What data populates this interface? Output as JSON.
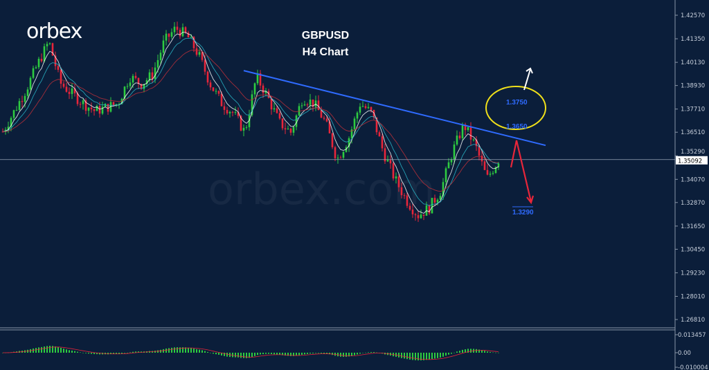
{
  "logo": "orbex",
  "watermark": "orbex.com",
  "title": {
    "symbol": "GBPUSD",
    "timeframe": "H4 Chart"
  },
  "colors": {
    "background": "#0b1e3a",
    "bull": "#2ecc40",
    "bear": "#e8263a",
    "trendline": "#2f6bff",
    "ellipse": "#f0e01a",
    "annotation": "#2f6bff"
  },
  "chart_data": {
    "type": "candlestick",
    "symbol": "GBPUSD",
    "timeframe": "H4",
    "ylim": [
      1.262,
      1.43
    ],
    "y_ticks": [
      "1.42570",
      "1.41350",
      "1.40130",
      "1.38930",
      "1.37710",
      "1.36510",
      "1.35290",
      "1.34070",
      "1.32870",
      "1.31650",
      "1.30450",
      "1.29230",
      "1.28010",
      "1.26810"
    ],
    "current_price": "1.35092",
    "approx_close_path": [
      1.3654,
      1.376,
      1.387,
      1.4,
      1.4121,
      1.3905,
      1.385,
      1.38,
      1.376,
      1.378,
      1.38,
      1.394,
      1.39,
      1.395,
      1.412,
      1.419,
      1.415,
      1.405,
      1.39,
      1.38,
      1.375,
      1.365,
      1.394,
      1.383,
      1.37,
      1.365,
      1.383,
      1.38,
      1.37,
      1.351,
      1.362,
      1.38,
      1.375,
      1.355,
      1.341,
      1.33,
      1.322,
      1.326,
      1.335,
      1.355,
      1.369,
      1.358,
      1.341,
      1.3509
    ],
    "annotations": {
      "levels": [
        "1.3750",
        "1.3650",
        "1.3290"
      ],
      "trendline": [
        1.397,
        1.3583
      ]
    },
    "indicator": {
      "name": "MACD",
      "y_ticks": [
        "0.013457",
        "0.00",
        "-0.010004"
      ]
    }
  }
}
